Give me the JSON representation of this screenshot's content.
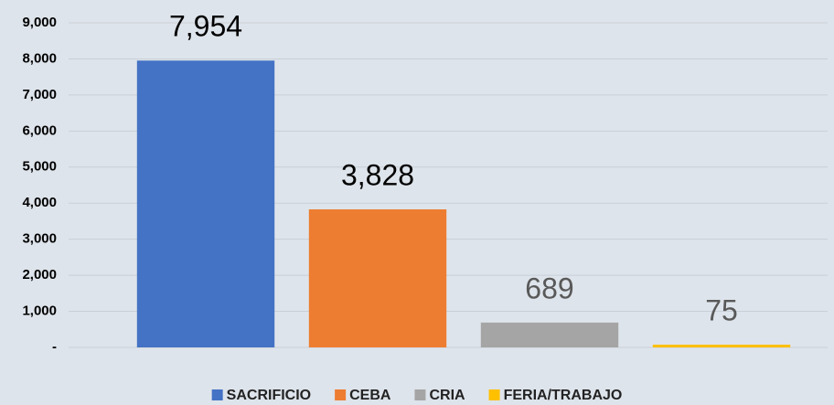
{
  "chart_data": {
    "type": "bar",
    "categories": [
      "SACRIFICIO",
      "CEBA",
      "CRIA",
      "FERIA/TRABAJO"
    ],
    "values": [
      7954,
      3828,
      689,
      75
    ],
    "value_labels": [
      "7,954",
      "3,828",
      "689",
      "75"
    ],
    "colors": [
      "#4472c4",
      "#ed7d31",
      "#a5a5a5",
      "#ffc000"
    ],
    "ylim": [
      0,
      9000
    ],
    "yticks": [
      {
        "value": 0,
        "label": "-"
      },
      {
        "value": 1000,
        "label": "1,000"
      },
      {
        "value": 2000,
        "label": "2,000"
      },
      {
        "value": 3000,
        "label": "3,000"
      },
      {
        "value": 4000,
        "label": "4,000"
      },
      {
        "value": 5000,
        "label": "5,000"
      },
      {
        "value": 6000,
        "label": "6,000"
      },
      {
        "value": 7000,
        "label": "7,000"
      },
      {
        "value": 8000,
        "label": "8,000"
      },
      {
        "value": 9000,
        "label": "9,000"
      }
    ],
    "grid": true,
    "legend": "bottom"
  }
}
